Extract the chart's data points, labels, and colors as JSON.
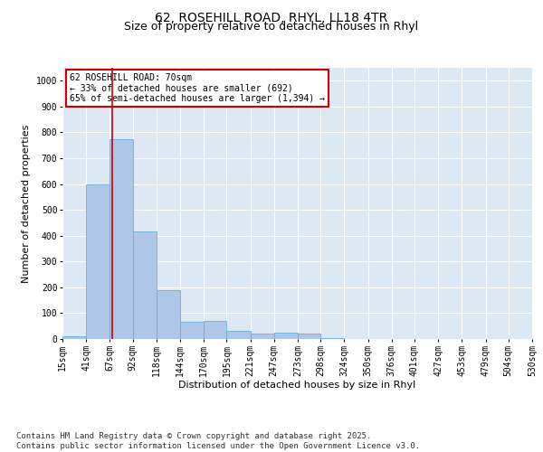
{
  "title_line1": "62, ROSEHILL ROAD, RHYL, LL18 4TR",
  "title_line2": "Size of property relative to detached houses in Rhyl",
  "xlabel": "Distribution of detached houses by size in Rhyl",
  "ylabel": "Number of detached properties",
  "bar_color": "#aec6e8",
  "bar_edge_color": "#6baed6",
  "background_color": "#dde8f5",
  "vline_x": 70,
  "vline_color": "#cc0000",
  "annotation_text": "62 ROSEHILL ROAD: 70sqm\n← 33% of detached houses are smaller (692)\n65% of semi-detached houses are larger (1,394) →",
  "annotation_box_color": "#ffffff",
  "annotation_box_edge": "#cc0000",
  "bins": [
    15,
    41,
    67,
    92,
    118,
    144,
    170,
    195,
    221,
    247,
    273,
    298,
    324,
    350,
    376,
    401,
    427,
    453,
    479,
    504,
    530
  ],
  "bin_labels": [
    "15sqm",
    "41sqm",
    "67sqm",
    "92sqm",
    "118sqm",
    "144sqm",
    "170sqm",
    "195sqm",
    "221sqm",
    "247sqm",
    "273sqm",
    "298sqm",
    "324sqm",
    "350sqm",
    "376sqm",
    "401sqm",
    "427sqm",
    "453sqm",
    "479sqm",
    "504sqm",
    "530sqm"
  ],
  "bar_heights": [
    10,
    600,
    775,
    415,
    190,
    65,
    70,
    30,
    20,
    25,
    20,
    5,
    0,
    0,
    0,
    0,
    0,
    0,
    0,
    0
  ],
  "ylim": [
    0,
    1050
  ],
  "yticks": [
    0,
    100,
    200,
    300,
    400,
    500,
    600,
    700,
    800,
    900,
    1000
  ],
  "footer_text": "Contains HM Land Registry data © Crown copyright and database right 2025.\nContains public sector information licensed under the Open Government Licence v3.0.",
  "title_fontsize": 10,
  "axis_label_fontsize": 8,
  "tick_fontsize": 7,
  "footer_fontsize": 6.5,
  "annot_fontsize": 7
}
